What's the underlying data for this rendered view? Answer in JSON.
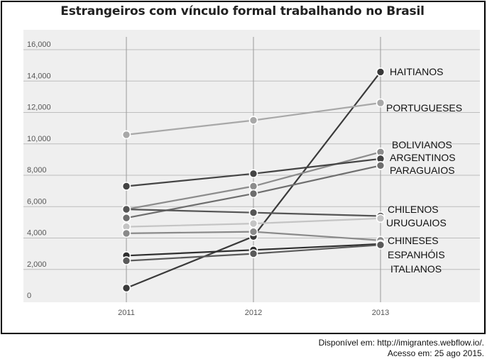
{
  "chart_data": {
    "type": "line",
    "title": "Estrangeiros com vínculo formal trabalhando no Brasil",
    "xlabel": "",
    "ylabel": "",
    "x": [
      "2011",
      "2012",
      "2013"
    ],
    "ylim": [
      0,
      16000
    ],
    "yticks": [
      "0",
      "2,000",
      "4,000",
      "6,000",
      "8,000",
      "10,000",
      "12,000",
      "14,000",
      "16,000"
    ],
    "grid": true,
    "series": [
      {
        "name": "HAITIANOS",
        "values": [
          815,
          4100,
          14580
        ],
        "color": "#3a3a3a"
      },
      {
        "name": "PORTUGUESES",
        "values": [
          10580,
          11500,
          12610
        ],
        "color": "#a8a8a8"
      },
      {
        "name": "BOLIVIANOS",
        "values": [
          5830,
          7300,
          9480
        ],
        "color": "#8c8c8c"
      },
      {
        "name": "ARGENTINOS",
        "values": [
          7300,
          8100,
          9050
        ],
        "color": "#444444"
      },
      {
        "name": "PARAGUAIOS",
        "values": [
          5280,
          6830,
          8620
        ],
        "color": "#6e6e6e"
      },
      {
        "name": "CHILENOS",
        "values": [
          5830,
          5620,
          5400
        ],
        "color": "#555555"
      },
      {
        "name": "URUGUAIOS",
        "values": [
          4720,
          4920,
          5250
        ],
        "color": "#c4c4c4"
      },
      {
        "name": "CHINESES",
        "values": [
          4300,
          4400,
          3850
        ],
        "color": "#8a8a8a"
      },
      {
        "name": "ESPANHÓIS",
        "values": [
          2880,
          3240,
          3620
        ],
        "color": "#2f2f2f"
      },
      {
        "name": "ITALIANOS",
        "values": [
          2550,
          3000,
          3560
        ],
        "color": "#5a5a5a"
      }
    ]
  },
  "source": {
    "line1": "Disponível em: http://imigrantes.webflow.io/.",
    "line2": "Acesso em: 25 ago 2015."
  }
}
